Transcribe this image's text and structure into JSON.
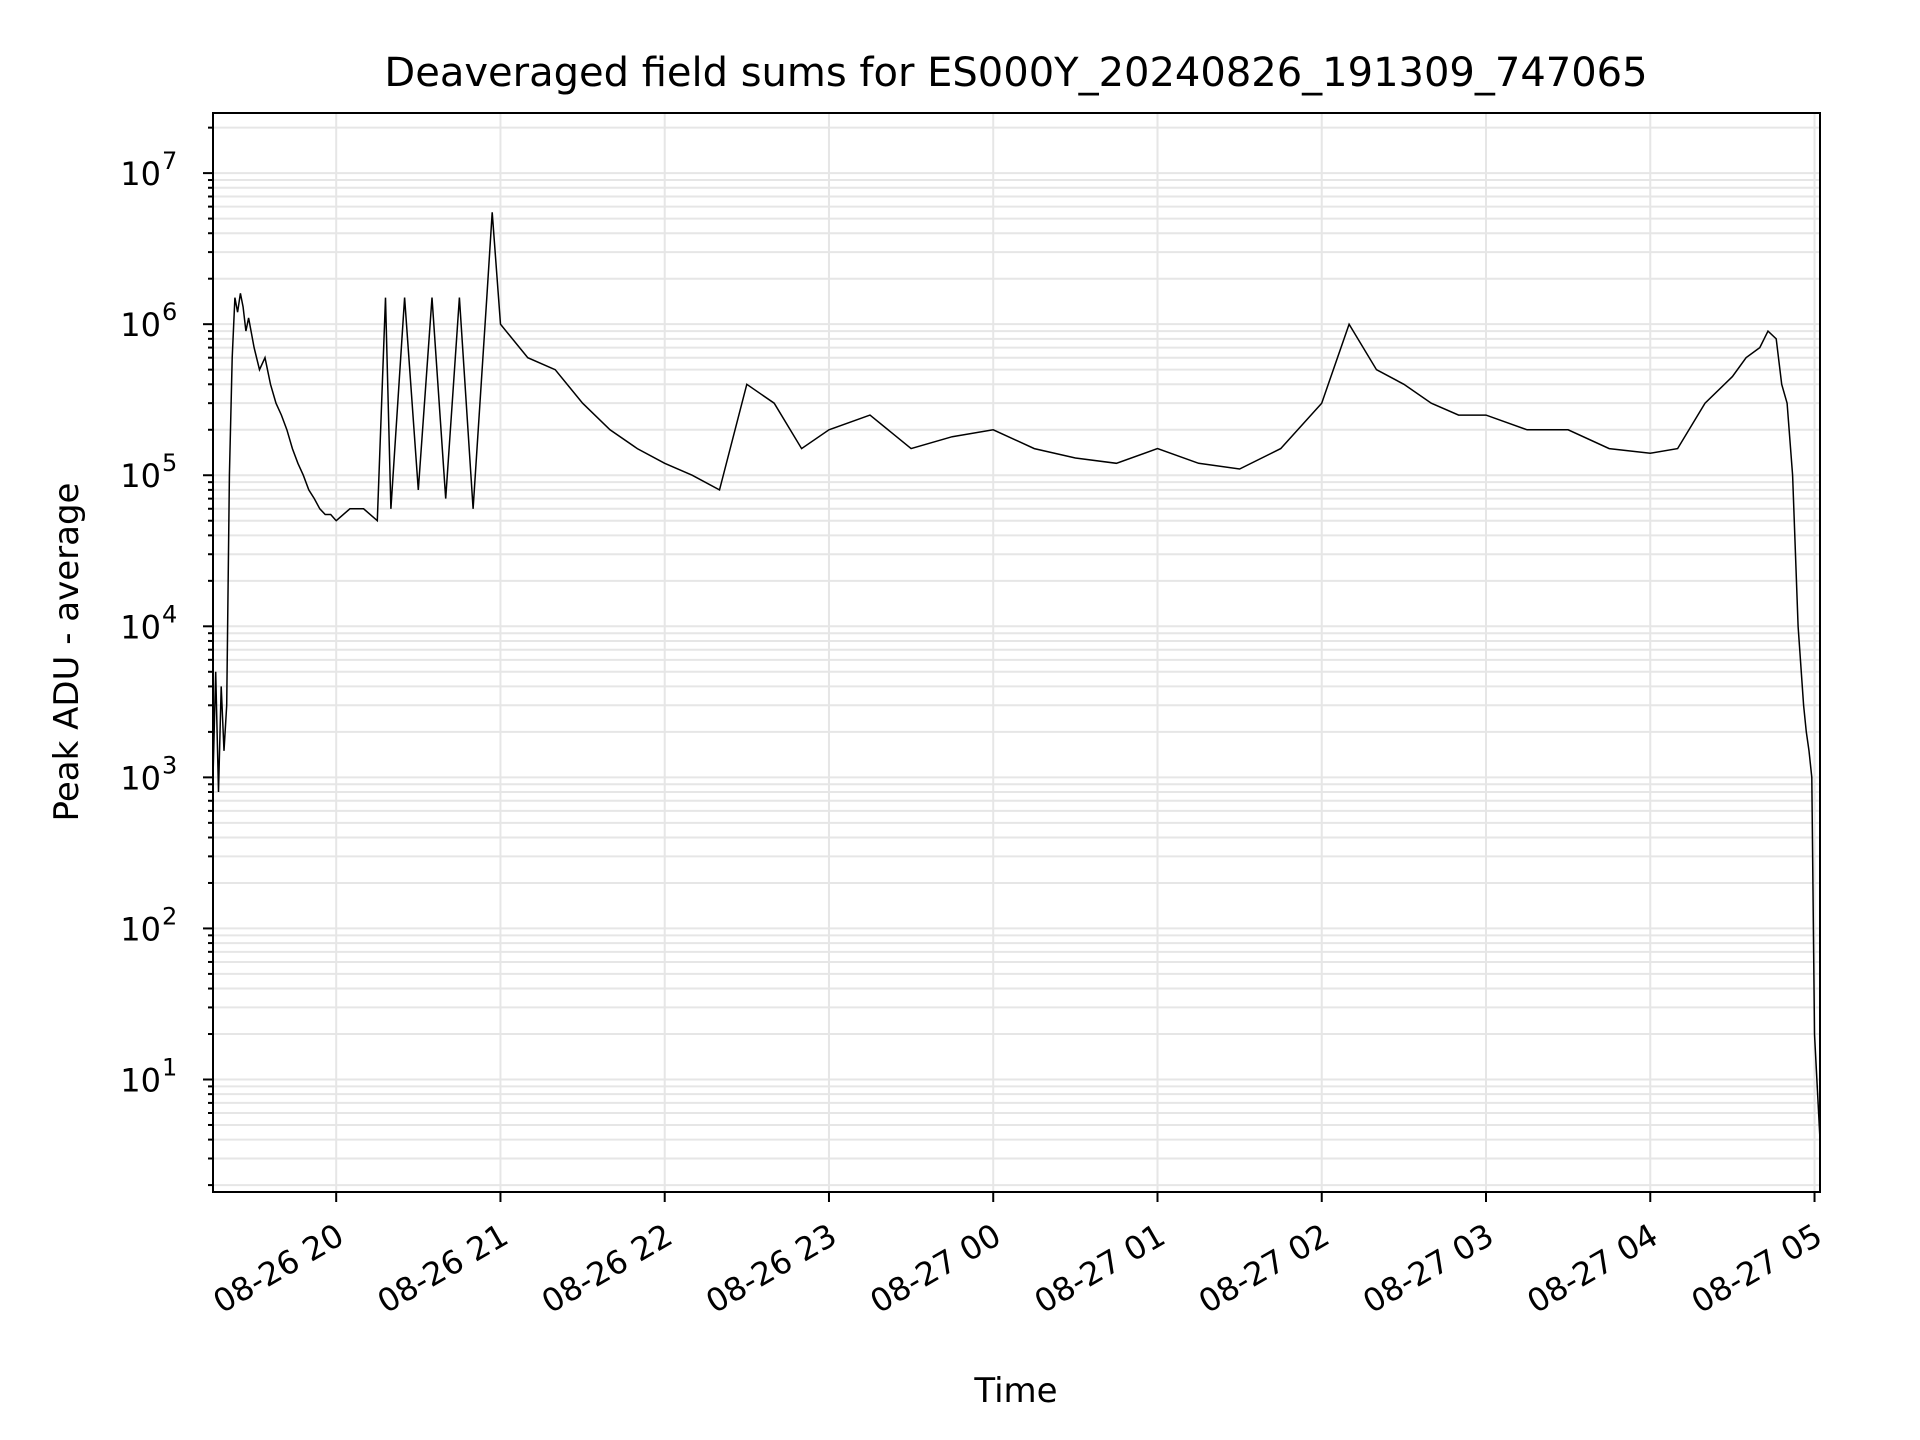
{
  "chart_data": {
    "type": "line",
    "title": "Deaveraged field sums for ES000Y_20240826_191309_747065",
    "xlabel": "Time",
    "ylabel": "Peak ADU - average",
    "yscale": "log",
    "ylim": [
      1.8,
      25000000
    ],
    "xlim": [
      "2024-08-26 19:15",
      "2024-08-27 05:02"
    ],
    "grid": true,
    "line_color": "#000000",
    "grid_color": "#e6e6e6",
    "x_ticks": [
      {
        "value": "2024-08-26 20:00",
        "label": "08-26 20"
      },
      {
        "value": "2024-08-26 21:00",
        "label": "08-26 21"
      },
      {
        "value": "2024-08-26 22:00",
        "label": "08-26 22"
      },
      {
        "value": "2024-08-26 23:00",
        "label": "08-26 23"
      },
      {
        "value": "2024-08-27 00:00",
        "label": "08-27 00"
      },
      {
        "value": "2024-08-27 01:00",
        "label": "08-27 01"
      },
      {
        "value": "2024-08-27 02:00",
        "label": "08-27 02"
      },
      {
        "value": "2024-08-27 03:00",
        "label": "08-27 03"
      },
      {
        "value": "2024-08-27 04:00",
        "label": "08-27 04"
      },
      {
        "value": "2024-08-27 05:00",
        "label": "08-27 05"
      }
    ],
    "y_ticks": [
      {
        "value": 10,
        "base": "10",
        "exp": "1"
      },
      {
        "value": 100,
        "base": "10",
        "exp": "2"
      },
      {
        "value": 1000,
        "base": "10",
        "exp": "3"
      },
      {
        "value": 10000,
        "base": "10",
        "exp": "4"
      },
      {
        "value": 100000,
        "base": "10",
        "exp": "5"
      },
      {
        "value": 1000000,
        "base": "10",
        "exp": "6"
      },
      {
        "value": 10000000,
        "base": "10",
        "exp": "7"
      }
    ],
    "series": [
      {
        "name": "",
        "x": [
          "2024-08-26 19:15",
          "2024-08-26 19:16",
          "2024-08-26 19:17",
          "2024-08-26 19:18",
          "2024-08-26 19:19",
          "2024-08-26 19:20",
          "2024-08-26 19:21",
          "2024-08-26 19:22",
          "2024-08-26 19:23",
          "2024-08-26 19:24",
          "2024-08-26 19:25",
          "2024-08-26 19:26",
          "2024-08-26 19:27",
          "2024-08-26 19:28",
          "2024-08-26 19:30",
          "2024-08-26 19:32",
          "2024-08-26 19:34",
          "2024-08-26 19:36",
          "2024-08-26 19:38",
          "2024-08-26 19:40",
          "2024-08-26 19:42",
          "2024-08-26 19:44",
          "2024-08-26 19:46",
          "2024-08-26 19:48",
          "2024-08-26 19:50",
          "2024-08-26 19:52",
          "2024-08-26 19:54",
          "2024-08-26 19:56",
          "2024-08-26 19:58",
          "2024-08-26 20:00",
          "2024-08-26 20:05",
          "2024-08-26 20:10",
          "2024-08-26 20:15",
          "2024-08-26 20:18",
          "2024-08-26 20:20",
          "2024-08-26 20:25",
          "2024-08-26 20:30",
          "2024-08-26 20:35",
          "2024-08-26 20:40",
          "2024-08-26 20:45",
          "2024-08-26 20:50",
          "2024-08-26 20:55",
          "2024-08-26 20:57",
          "2024-08-26 21:00",
          "2024-08-26 21:10",
          "2024-08-26 21:20",
          "2024-08-26 21:30",
          "2024-08-26 21:40",
          "2024-08-26 21:50",
          "2024-08-26 22:00",
          "2024-08-26 22:10",
          "2024-08-26 22:20",
          "2024-08-26 22:30",
          "2024-08-26 22:40",
          "2024-08-26 22:50",
          "2024-08-26 23:00",
          "2024-08-26 23:15",
          "2024-08-26 23:30",
          "2024-08-26 23:45",
          "2024-08-27 00:00",
          "2024-08-27 00:15",
          "2024-08-27 00:30",
          "2024-08-27 00:45",
          "2024-08-27 01:00",
          "2024-08-27 01:15",
          "2024-08-27 01:30",
          "2024-08-27 01:45",
          "2024-08-27 02:00",
          "2024-08-27 02:10",
          "2024-08-27 02:20",
          "2024-08-27 02:30",
          "2024-08-27 02:40",
          "2024-08-27 02:50",
          "2024-08-27 03:00",
          "2024-08-27 03:15",
          "2024-08-27 03:30",
          "2024-08-27 03:45",
          "2024-08-27 04:00",
          "2024-08-27 04:10",
          "2024-08-27 04:20",
          "2024-08-27 04:30",
          "2024-08-27 04:35",
          "2024-08-27 04:40",
          "2024-08-27 04:43",
          "2024-08-27 04:46",
          "2024-08-27 04:48",
          "2024-08-27 04:50",
          "2024-08-27 04:52",
          "2024-08-27 04:54",
          "2024-08-27 04:56",
          "2024-08-27 04:57",
          "2024-08-27 04:58",
          "2024-08-27 04:59",
          "2024-08-27 05:00",
          "2024-08-27 05:02"
        ],
        "y": [
          1000,
          5000,
          800,
          4000,
          1500,
          3000,
          100000,
          600000,
          1500000,
          1200000,
          1600000,
          1300000,
          900000,
          1100000,
          700000,
          500000,
          600000,
          400000,
          300000,
          250000,
          200000,
          150000,
          120000,
          100000,
          80000,
          70000,
          60000,
          55000,
          55000,
          50000,
          60000,
          60000,
          50000,
          1500000,
          60000,
          1500000,
          80000,
          1500000,
          70000,
          1500000,
          60000,
          1500000,
          5500000,
          1000000,
          600000,
          500000,
          300000,
          200000,
          150000,
          120000,
          100000,
          80000,
          400000,
          300000,
          150000,
          200000,
          250000,
          150000,
          180000,
          200000,
          150000,
          130000,
          120000,
          150000,
          120000,
          110000,
          150000,
          300000,
          1000000,
          500000,
          400000,
          300000,
          250000,
          250000,
          200000,
          200000,
          150000,
          140000,
          150000,
          300000,
          450000,
          600000,
          700000,
          900000,
          800000,
          400000,
          300000,
          100000,
          10000,
          3000,
          2000,
          1500,
          1000,
          20,
          4
        ]
      }
    ]
  }
}
